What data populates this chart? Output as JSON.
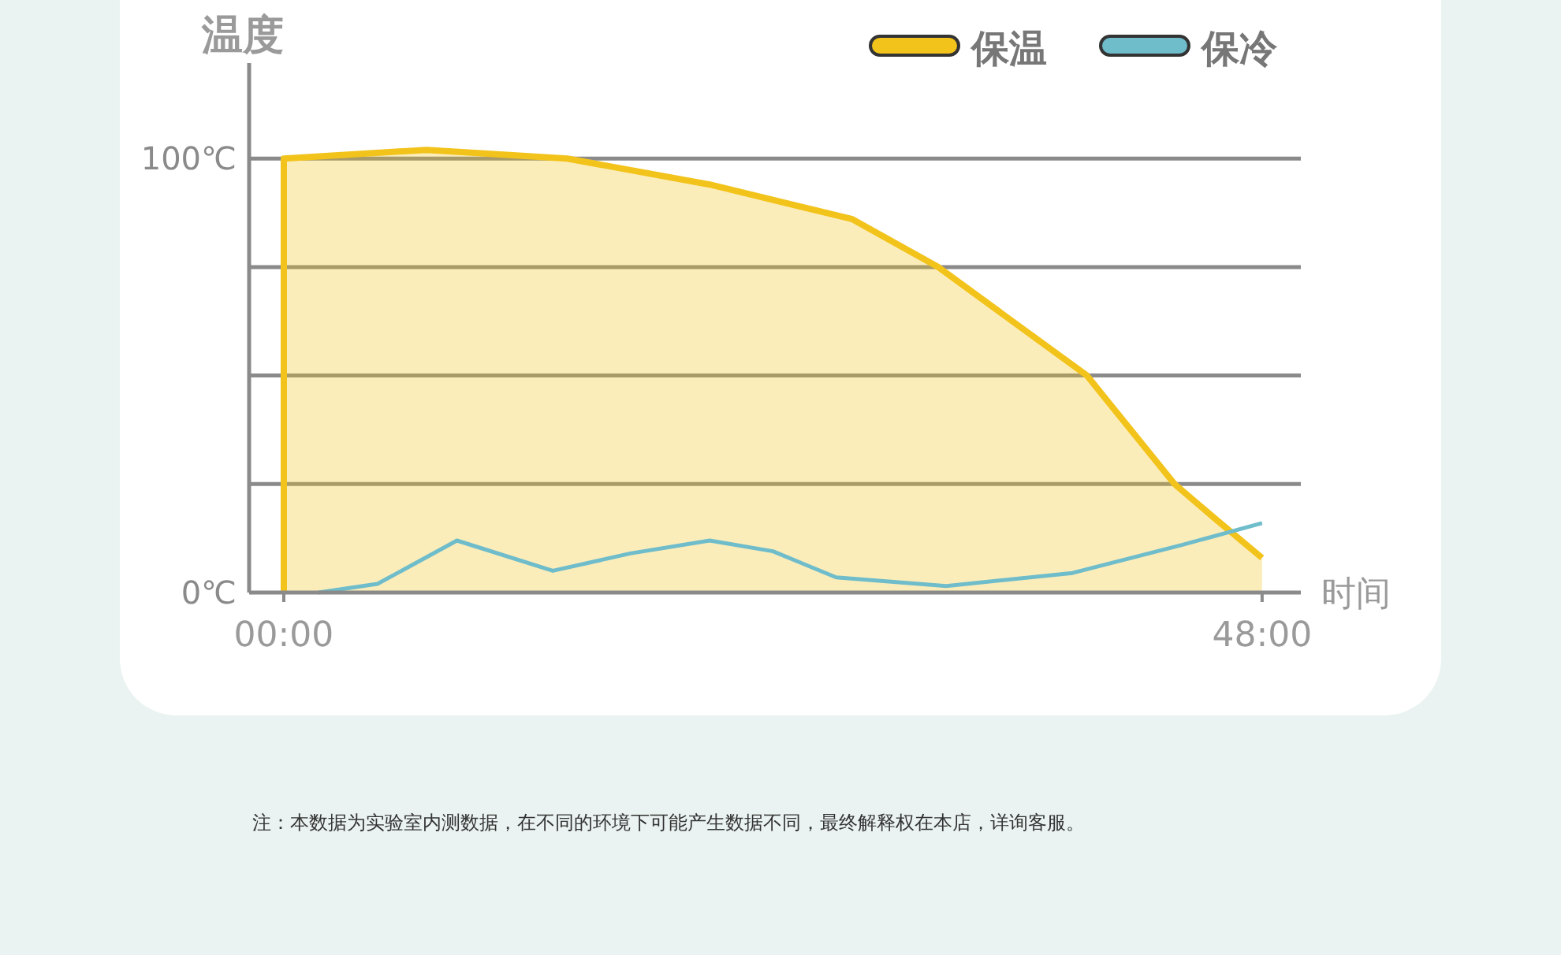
{
  "chart_data": {
    "type": "line",
    "ylabel": "温度",
    "xlabel": "时间",
    "xlim": [
      -1.7,
      49.9
    ],
    "ylim": [
      0,
      122
    ],
    "xticks": [
      {
        "value": 0,
        "label": "00:00"
      },
      {
        "value": 48,
        "label": "48:00"
      }
    ],
    "yticks": [
      {
        "value": 0,
        "label": "0℃"
      },
      {
        "value": 25,
        "label": null
      },
      {
        "value": 50,
        "label": null
      },
      {
        "value": 75,
        "label": null
      },
      {
        "value": 100,
        "label": "100℃"
      }
    ],
    "grid": "y",
    "legend": "top right",
    "series": [
      {
        "name": "保温",
        "type": "area",
        "color": "#f2c31b",
        "x": [
          0,
          0,
          7,
          13.9,
          20.9,
          27.9,
          32.1,
          39.4,
          43.7,
          45.7,
          48
        ],
        "values": [
          0,
          100,
          102,
          100,
          94,
          86,
          75,
          50,
          25,
          17,
          8
        ]
      },
      {
        "name": "保冷",
        "color": "#6fbccb",
        "x": [
          1.7,
          4.6,
          8.5,
          13.2,
          17,
          20.9,
          24,
          27.1,
          32.5,
          38.7,
          44.1,
          48
        ],
        "values": [
          0,
          2,
          12,
          5,
          9,
          12,
          9.5,
          3.5,
          1.5,
          4.5,
          11,
          16
        ]
      }
    ],
    "annotations": [
      "注：本数据为实验室内测数据，在不同的环境下可能产生数据不同，最终解释权在本店，详询客服。"
    ]
  }
}
